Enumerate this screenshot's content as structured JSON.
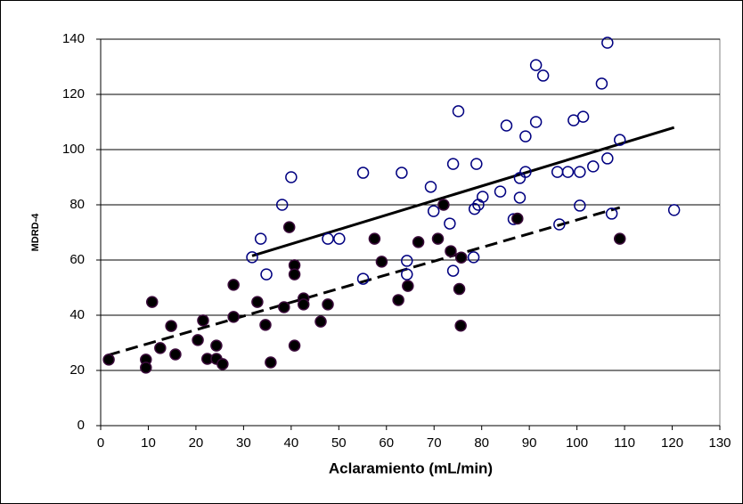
{
  "chart_data": {
    "type": "scatter",
    "x_label": "Aclaramiento (mL/min)",
    "y_label": "MDRD-4",
    "xlim": [
      0,
      130
    ],
    "xticks": [
      0,
      10,
      20,
      30,
      40,
      50,
      60,
      70,
      80,
      90,
      100,
      110,
      120,
      130
    ],
    "ylim": [
      0,
      140
    ],
    "yticks": [
      0,
      20,
      40,
      60,
      80,
      100,
      120,
      140
    ],
    "grid": true,
    "series": [
      {
        "color": "#000080",
        "marker": "open",
        "x": [
          31.8,
          33.6,
          34.8,
          38.1,
          40,
          47.7,
          50.1,
          55.1,
          55.1,
          63.2,
          64.3,
          64.3,
          69.3,
          69.9,
          73.3,
          74,
          74,
          75.1,
          78.3,
          78.5,
          79.3,
          78.9,
          80.2,
          83.9,
          85.2,
          86.7,
          88,
          88,
          89.2,
          89.2,
          91.4,
          91.4,
          92.9,
          95.9,
          96.3,
          98.1,
          99.3,
          100.6,
          100.6,
          101.3,
          103.4,
          105.2,
          106.4,
          106.4,
          107.3,
          109,
          120.4
        ],
        "values": [
          61,
          67.7,
          54.8,
          80,
          90,
          67.7,
          67.7,
          53.2,
          91.6,
          91.6,
          59.7,
          54.8,
          86.5,
          77.7,
          73.2,
          56.1,
          94.8,
          113.9,
          61,
          78.5,
          80,
          94.8,
          82.9,
          84.8,
          108.7,
          74.8,
          82.6,
          89.7,
          104.8,
          91.9,
          110,
          130.6,
          126.8,
          91.9,
          72.9,
          91.9,
          110.6,
          79.7,
          91.9,
          111.9,
          93.9,
          123.9,
          138.7,
          96.8,
          76.8,
          103.5,
          78.1
        ]
      },
      {
        "color": "#3a0a3a",
        "marker": "filled",
        "x": [
          1.7,
          9.5,
          9.5,
          10.8,
          12.5,
          14.8,
          15.7,
          20.4,
          21.5,
          22.4,
          24.3,
          24.3,
          25.6,
          27.9,
          27.9,
          32.9,
          34.6,
          35.7,
          38.5,
          39.6,
          40.7,
          40.7,
          40.7,
          42.6,
          42.6,
          46.2,
          47.7,
          57.5,
          59,
          62.5,
          64.5,
          66.7,
          70.8,
          72,
          73.5,
          75.3,
          75.6,
          75.7,
          87.5,
          109
        ],
        "values": [
          23.9,
          23.9,
          21,
          44.8,
          28.1,
          36.1,
          25.8,
          31,
          38.1,
          24.2,
          29,
          24.2,
          22.3,
          51,
          39.4,
          44.8,
          36.5,
          22.9,
          42.9,
          71.9,
          58.1,
          54.8,
          29,
          46.1,
          43.9,
          37.7,
          43.9,
          67.7,
          59.4,
          45.5,
          50.6,
          66.5,
          67.7,
          80,
          63.2,
          49.5,
          36.2,
          60.9,
          75,
          67.7
        ]
      }
    ],
    "trendlines": [
      {
        "color": "#000000",
        "dashed": false,
        "x": [
          31.8,
          120.4
        ],
        "values": [
          61.5,
          108
        ]
      },
      {
        "color": "#000000",
        "dashed": true,
        "x": [
          1.5,
          109
        ],
        "values": [
          25.5,
          79
        ]
      }
    ]
  }
}
